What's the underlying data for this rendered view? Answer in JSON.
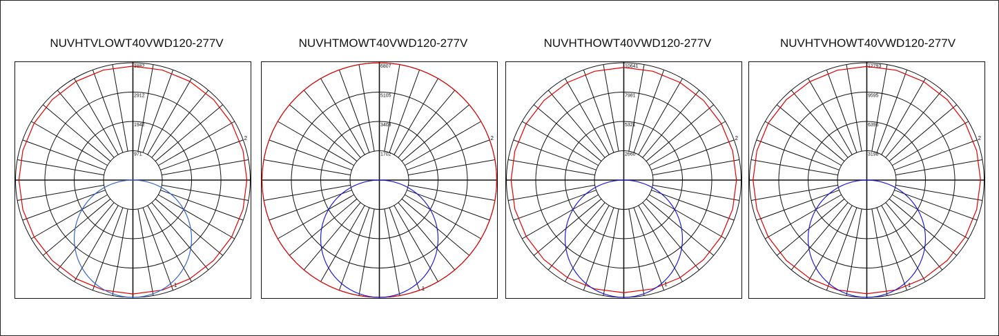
{
  "colors": {
    "curve_1": "#dd0000",
    "curve_2": "#1a1ad8",
    "curve_2_first": "#3366cc",
    "grid": "#111111"
  },
  "chart_data": [
    {
      "type": "polar",
      "title": "NUVHTVLOWT40VWD120-277V",
      "ring_values": [
        971,
        1942,
        2912,
        3882
      ],
      "rmax": 3882,
      "series": [
        {
          "label": "1",
          "color": "#dd0000",
          "shape": "polygon",
          "r": 3770,
          "sides": 24
        },
        {
          "label": "2",
          "color": "#3366cc",
          "shape": "circle",
          "r": 3882,
          "sides": 72
        }
      ]
    },
    {
      "type": "polar",
      "title": "NUVHTMOWT40VWD120-277V",
      "ring_values": [
        1702,
        3403,
        5105,
        6807
      ],
      "rmax": 6807,
      "series": [
        {
          "label": "1",
          "color": "#dd0000",
          "shape": "polygon",
          "r": 6807,
          "sides": 72
        },
        {
          "label": "2",
          "color": "#1a1ad8",
          "shape": "circle",
          "r": 6807,
          "sides": 72
        }
      ]
    },
    {
      "type": "polar",
      "title": "NUVHTHOWT40VWD120-277V",
      "ring_values": [
        2660,
        5321,
        7981,
        10641
      ],
      "rmax": 10641,
      "series": [
        {
          "label": "1",
          "color": "#dd0000",
          "shape": "polygon",
          "r": 10220,
          "sides": 24
        },
        {
          "label": "2",
          "color": "#1a1ad8",
          "shape": "circle",
          "r": 10641,
          "sides": 72
        }
      ]
    },
    {
      "type": "polar",
      "title": "NUVHTVHOWT40VWD120-277V",
      "ring_values": [
        3198,
        6396,
        9595,
        12793
      ],
      "rmax": 12793,
      "series": [
        {
          "label": "1",
          "color": "#dd0000",
          "shape": "polygon",
          "r": 12400,
          "sides": 24
        },
        {
          "label": "2",
          "color": "#1a1ad8",
          "shape": "circle",
          "r": 12793,
          "sides": 72
        }
      ]
    }
  ]
}
